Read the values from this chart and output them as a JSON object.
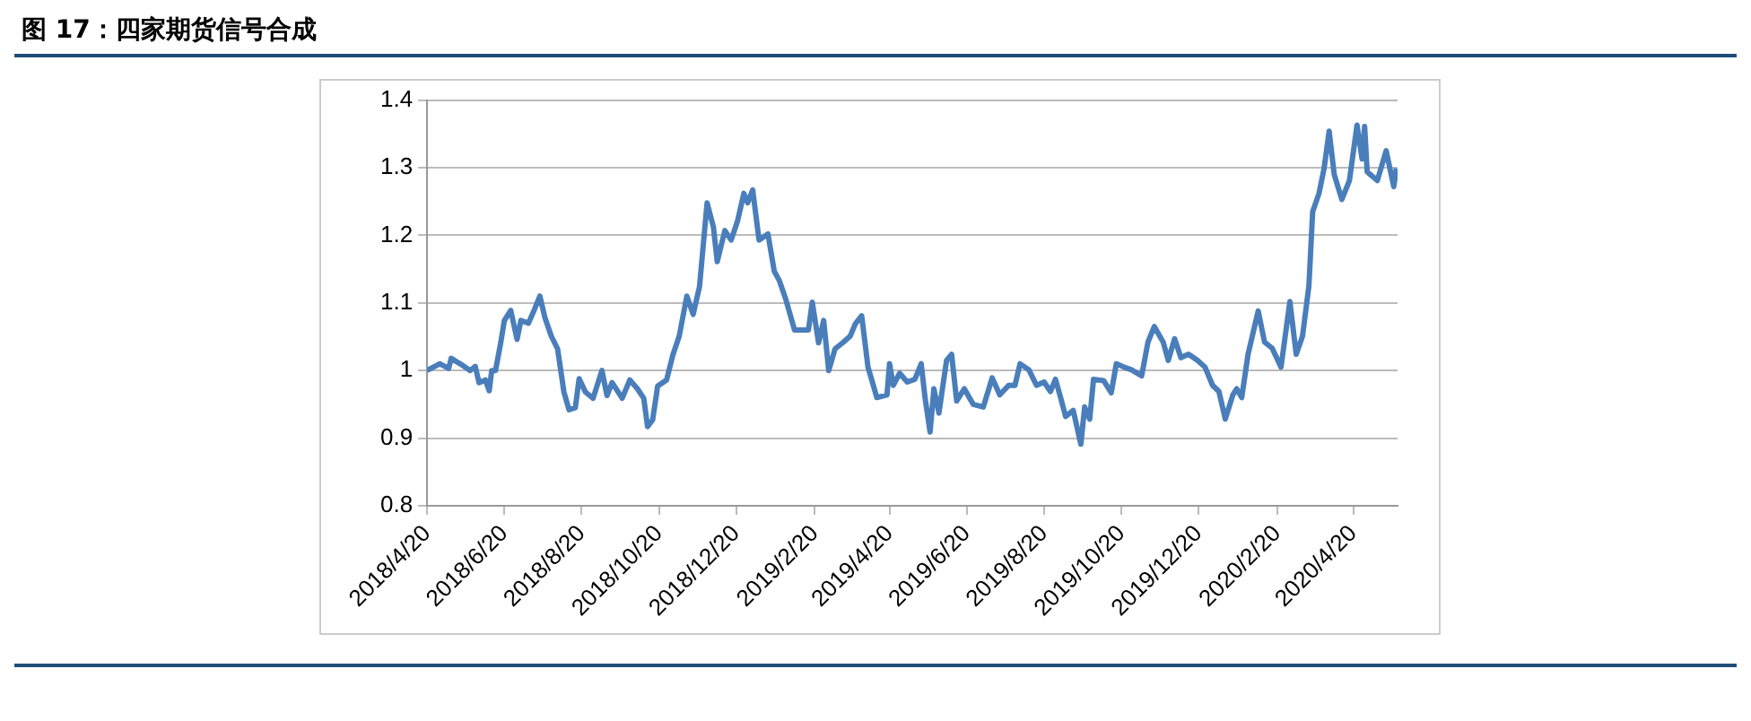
{
  "chart_data": {
    "type": "line",
    "title": "图 17：四家期货信号合成",
    "x": [
      "2018-04-20",
      "2018-04-30",
      "2018-05-07",
      "2018-05-09",
      "2018-05-16",
      "2018-05-24",
      "2018-05-28",
      "2018-05-31",
      "2018-06-05",
      "2018-06-08",
      "2018-06-10",
      "2018-06-13",
      "2018-06-17",
      "2018-06-20",
      "2018-06-25",
      "2018-06-30",
      "2018-07-03",
      "2018-07-09",
      "2018-07-13",
      "2018-07-18",
      "2018-07-22",
      "2018-07-27",
      "2018-08-01",
      "2018-08-06",
      "2018-08-10",
      "2018-08-15",
      "2018-08-18",
      "2018-08-23",
      "2018-08-29",
      "2018-09-05",
      "2018-09-09",
      "2018-09-13",
      "2018-09-21",
      "2018-09-27",
      "2018-10-03",
      "2018-10-08",
      "2018-10-11",
      "2018-10-15",
      "2018-10-19",
      "2018-10-26",
      "2018-10-31",
      "2018-11-05",
      "2018-11-11",
      "2018-11-16",
      "2018-11-21",
      "2018-11-27",
      "2018-12-02",
      "2018-12-05",
      "2018-12-11",
      "2018-12-16",
      "2018-12-21",
      "2018-12-26",
      "2018-12-29",
      "2019-01-02",
      "2019-01-07",
      "2019-01-14",
      "2019-01-19",
      "2019-01-23",
      "2019-01-28",
      "2019-02-04",
      "2019-02-15",
      "2019-02-18",
      "2019-02-23",
      "2019-02-27",
      "2019-03-03",
      "2019-03-08",
      "2019-03-14",
      "2019-03-20",
      "2019-03-24",
      "2019-03-29",
      "2019-04-03",
      "2019-04-10",
      "2019-04-18",
      "2019-04-20",
      "2019-04-23",
      "2019-04-28",
      "2019-05-04",
      "2019-05-10",
      "2019-05-15",
      "2019-05-18",
      "2019-05-22",
      "2019-05-25",
      "2019-05-29",
      "2019-06-04",
      "2019-06-08",
      "2019-06-12",
      "2019-06-18",
      "2019-06-25",
      "2019-07-03",
      "2019-07-10",
      "2019-07-16",
      "2019-07-23",
      "2019-07-28",
      "2019-08-01",
      "2019-08-08",
      "2019-08-14",
      "2019-08-20",
      "2019-08-25",
      "2019-08-29",
      "2019-09-02",
      "2019-09-06",
      "2019-09-12",
      "2019-09-18",
      "2019-09-21",
      "2019-09-25",
      "2019-09-28",
      "2019-10-06",
      "2019-10-12",
      "2019-10-16",
      "2019-10-22",
      "2019-10-28",
      "2019-11-05",
      "2019-11-10",
      "2019-11-15",
      "2019-11-22",
      "2019-11-26",
      "2019-12-01",
      "2019-12-06",
      "2019-12-12",
      "2019-12-19",
      "2019-12-25",
      "2019-12-31",
      "2020-01-05",
      "2020-01-10",
      "2020-01-16",
      "2020-01-19",
      "2020-01-23",
      "2020-01-28",
      "2020-02-05",
      "2020-02-10",
      "2020-02-16",
      "2020-02-23",
      "2020-03-01",
      "2020-03-06",
      "2020-03-11",
      "2020-03-16",
      "2020-03-19",
      "2020-03-24",
      "2020-03-28",
      "2020-04-01",
      "2020-04-05",
      "2020-04-11",
      "2020-04-17",
      "2020-04-23",
      "2020-04-27",
      "2020-04-29",
      "2020-05-01",
      "2020-05-09",
      "2020-05-16",
      "2020-05-22",
      "2020-05-24"
    ],
    "series": [
      {
        "color": "#4a7ebb",
        "values": [
          1.0,
          1.01,
          1.003,
          1.018,
          1.01,
          1.0,
          1.006,
          0.982,
          0.986,
          0.97,
          1.0,
          1.0,
          1.04,
          1.074,
          1.089,
          1.046,
          1.074,
          1.07,
          1.087,
          1.11,
          1.078,
          1.051,
          1.032,
          0.968,
          0.942,
          0.945,
          0.988,
          0.968,
          0.959,
          1.0,
          0.963,
          0.982,
          0.959,
          0.986,
          0.973,
          0.959,
          0.917,
          0.927,
          0.977,
          0.986,
          1.023,
          1.051,
          1.11,
          1.083,
          1.124,
          1.248,
          1.212,
          1.161,
          1.207,
          1.193,
          1.221,
          1.262,
          1.248,
          1.267,
          1.193,
          1.202,
          1.147,
          1.133,
          1.106,
          1.06,
          1.06,
          1.101,
          1.041,
          1.074,
          1.0,
          1.032,
          1.041,
          1.051,
          1.069,
          1.081,
          1.005,
          0.96,
          0.964,
          1.01,
          0.978,
          0.996,
          0.983,
          0.987,
          1.01,
          0.96,
          0.909,
          0.973,
          0.937,
          1.015,
          1.024,
          0.955,
          0.973,
          0.95,
          0.946,
          0.989,
          0.964,
          0.978,
          0.978,
          1.01,
          1.001,
          0.978,
          0.983,
          0.969,
          0.987,
          0.96,
          0.932,
          0.941,
          0.891,
          0.946,
          0.928,
          0.987,
          0.985,
          0.967,
          1.01,
          1.005,
          1.001,
          0.992,
          1.042,
          1.065,
          1.042,
          1.015,
          1.047,
          1.019,
          1.024,
          1.015,
          1.005,
          0.978,
          0.969,
          0.928,
          0.964,
          0.973,
          0.96,
          1.024,
          1.088,
          1.042,
          1.033,
          1.005,
          1.102,
          1.024,
          1.051,
          1.125,
          1.235,
          1.262,
          1.299,
          1.354,
          1.29,
          1.253,
          1.281,
          1.363,
          1.313,
          1.361,
          1.294,
          1.281,
          1.325,
          1.272,
          1.299
        ]
      }
    ],
    "xlim": [
      "2018-04-20",
      "2020-05-25"
    ],
    "xticks": [
      {
        "value": "2018-04-20",
        "label": "2018/4/20"
      },
      {
        "value": "2018-06-20",
        "label": "2018/6/20"
      },
      {
        "value": "2018-08-20",
        "label": "2018/8/20"
      },
      {
        "value": "2018-10-20",
        "label": "2018/10/20"
      },
      {
        "value": "2018-12-20",
        "label": "2018/12/20"
      },
      {
        "value": "2019-02-20",
        "label": "2019/2/20"
      },
      {
        "value": "2019-04-20",
        "label": "2019/4/20"
      },
      {
        "value": "2019-06-20",
        "label": "2019/6/20"
      },
      {
        "value": "2019-08-20",
        "label": "2019/8/20"
      },
      {
        "value": "2019-10-20",
        "label": "2019/10/20"
      },
      {
        "value": "2019-12-20",
        "label": "2019/12/20"
      },
      {
        "value": "2020-02-20",
        "label": "2020/2/20"
      },
      {
        "value": "2020-04-20",
        "label": "2020/4/20"
      }
    ],
    "ylim": [
      0.8,
      1.4
    ],
    "yticks": [
      {
        "value": 0.8,
        "label": "0.8"
      },
      {
        "value": 0.9,
        "label": "0.9"
      },
      {
        "value": 1,
        "label": "1"
      },
      {
        "value": 1.1,
        "label": "1.1"
      },
      {
        "value": 1.2,
        "label": "1.2"
      },
      {
        "value": 1.3,
        "label": "1.3"
      },
      {
        "value": 1.4,
        "label": "1.4"
      }
    ],
    "grid": "y",
    "marker": "none",
    "line_style": "solid"
  }
}
